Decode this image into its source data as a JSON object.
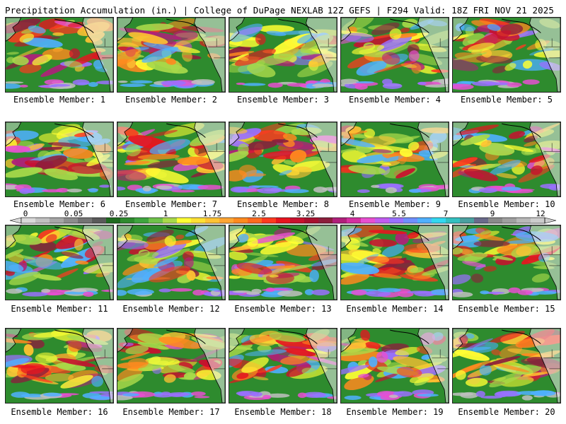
{
  "header": {
    "left": "Precipitation Accumulation (in.) | College of DuPage NEXLAB",
    "right": "12Z GEFS | F294 Valid: 18Z FRI NOV 21 2025"
  },
  "panels": [
    {
      "caption": "Ensemble Member: 1"
    },
    {
      "caption": "Ensemble Member: 2"
    },
    {
      "caption": "Ensemble Member: 3"
    },
    {
      "caption": "Ensemble Member: 4"
    },
    {
      "caption": "Ensemble Member: 5"
    },
    {
      "caption": "Ensemble Member: 6"
    },
    {
      "caption": "Ensemble Member: 7"
    },
    {
      "caption": "Ensemble Member: 8"
    },
    {
      "caption": "Ensemble Member: 9"
    },
    {
      "caption": "Ensemble Member: 10"
    },
    {
      "caption": "Ensemble Member: 11"
    },
    {
      "caption": "Ensemble Member: 12"
    },
    {
      "caption": "Ensemble Member: 13"
    },
    {
      "caption": "Ensemble Member: 14"
    },
    {
      "caption": "Ensemble Member: 15"
    },
    {
      "caption": "Ensemble Member: 16"
    },
    {
      "caption": "Ensemble Member: 17"
    },
    {
      "caption": "Ensemble Member: 18"
    },
    {
      "caption": "Ensemble Member: 19"
    },
    {
      "caption": "Ensemble Member: 20"
    }
  ],
  "colorbar": {
    "labels": [
      "0",
      "0.05",
      "0.25",
      "1",
      "1.75",
      "2.5",
      "3.25",
      "4",
      "5.5",
      "7",
      "9",
      "12"
    ],
    "colors": [
      "#d9d9d9",
      "#c0c0c0",
      "#a6a6a6",
      "#8c8c8c",
      "#737373",
      "#5a5a5a",
      "#1f6b1f",
      "#2e8b2e",
      "#3fa53f",
      "#6fc24a",
      "#a8d94a",
      "#ffff33",
      "#ffe033",
      "#ffc233",
      "#ffa533",
      "#ff8a1f",
      "#ff6a1f",
      "#ff3a1f",
      "#e8141f",
      "#c8102e",
      "#a8102e",
      "#8c1e3c",
      "#b0207a",
      "#d42fa0",
      "#e84fd0",
      "#c05cf0",
      "#9a70ff",
      "#6f8fff",
      "#4fb0ff",
      "#33d8f0",
      "#33c0c0",
      "#4aa0a0",
      "#6a6a8a",
      "#8a8a8a",
      "#a0a0a0",
      "#b8b8b8",
      "#cccccc"
    ]
  },
  "map_colors": {
    "land": "#ececec",
    "ocean_base": "#2e8b2e",
    "outline": "#000000",
    "shades": [
      "#a8d94a",
      "#ffff33",
      "#ffc233",
      "#ff8a1f",
      "#ff3a1f",
      "#e8141f",
      "#c8102e",
      "#8c1e3c",
      "#b0207a",
      "#e84fd0",
      "#9a70ff",
      "#4fb0ff"
    ]
  }
}
